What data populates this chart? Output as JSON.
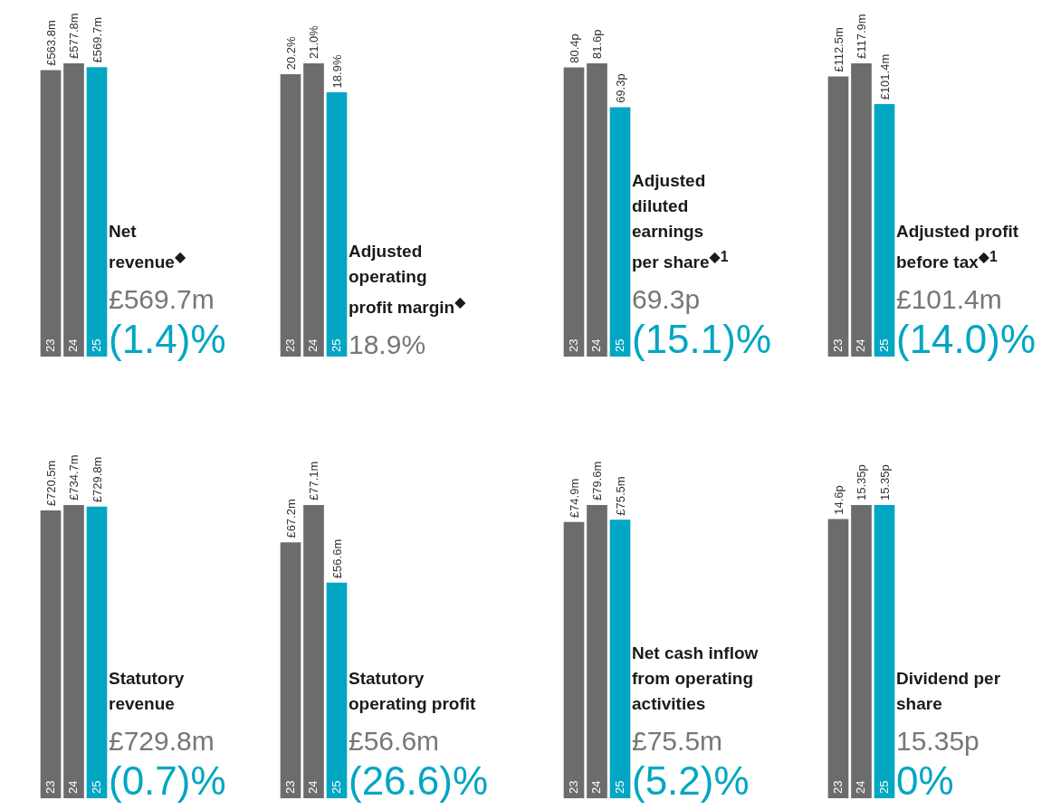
{
  "chart_data": [
    {
      "type": "bar",
      "title": "Net revenue$^{◆}$",
      "categories": [
        "23",
        "24",
        "25"
      ],
      "values": [
        563.8,
        577.8,
        569.7
      ],
      "value_labels": [
        "£563.8m",
        "£577.8m",
        "£569.7m"
      ],
      "colors": [
        "#6d6c6d",
        "#6d6c6d",
        "#00a6c2"
      ],
      "annotations": [
        "£569.7m",
        "(1.4)%"
      ]
    },
    {
      "type": "bar",
      "title": "Adjusted operating profit margin$^{◆}$",
      "categories": [
        "23",
        "24",
        "25"
      ],
      "values": [
        20.2,
        21.0,
        18.9
      ],
      "value_labels": [
        "20.2%",
        "21.0%",
        "18.9%"
      ],
      "colors": [
        "#6d6c6d",
        "#6d6c6d",
        "#00a6c2"
      ],
      "annotations": [
        "18.9%"
      ]
    },
    {
      "type": "bar",
      "title": "Adjusted diluted earnings per share$^{◆1}$",
      "categories": [
        "23",
        "24",
        "25"
      ],
      "values": [
        80.4,
        81.6,
        69.3
      ],
      "value_labels": [
        "80.4p",
        "81.6p",
        "69.3p"
      ],
      "colors": [
        "#6d6c6d",
        "#6d6c6d",
        "#00a6c2"
      ],
      "annotations": [
        "69.3p",
        "(15.1)%"
      ]
    },
    {
      "type": "bar",
      "title": "Adjusted profit before tax$^{◆1}$",
      "categories": [
        "23",
        "24",
        "25"
      ],
      "values": [
        112.5,
        117.9,
        101.4
      ],
      "value_labels": [
        "£112.5m",
        "£117.9m",
        "£101.4m"
      ],
      "colors": [
        "#6d6c6d",
        "#6d6c6d",
        "#00a6c2"
      ],
      "annotations": [
        "£101.4m",
        "(14.0)%"
      ]
    },
    {
      "type": "bar",
      "title": "Statutory revenue",
      "categories": [
        "23",
        "24",
        "25"
      ],
      "values": [
        720.5,
        734.7,
        729.8
      ],
      "value_labels": [
        "£720.5m",
        "£734.7m",
        "£729.8m"
      ],
      "colors": [
        "#6d6c6d",
        "#6d6c6d",
        "#00a6c2"
      ],
      "annotations": [
        "£729.8m",
        "(0.7)%"
      ]
    },
    {
      "type": "bar",
      "title": "Statutory operating profit",
      "categories": [
        "23",
        "24",
        "25"
      ],
      "values": [
        67.2,
        77.1,
        56.6
      ],
      "value_labels": [
        "£67.2m",
        "£77.1m",
        "£56.6m"
      ],
      "colors": [
        "#6d6c6d",
        "#6d6c6d",
        "#00a6c2"
      ],
      "annotations": [
        "£56.6m",
        "(26.6)%"
      ]
    },
    {
      "type": "bar",
      "title": "Net cash inflow from operating activities",
      "categories": [
        "23",
        "24",
        "25"
      ],
      "values": [
        74.9,
        79.6,
        75.5
      ],
      "value_labels": [
        "£74.9m",
        "£79.6m",
        "£75.5m"
      ],
      "colors": [
        "#6d6c6d",
        "#6d6c6d",
        "#00a6c2"
      ],
      "annotations": [
        "£75.5m",
        "(5.2)%"
      ]
    },
    {
      "type": "bar",
      "title": "Dividend per share",
      "categories": [
        "23",
        "24",
        "25"
      ],
      "values": [
        14.6,
        15.35,
        15.35
      ],
      "value_labels": [
        "14.6p",
        "15.35p",
        "15.35p"
      ],
      "colors": [
        "#6d6c6d",
        "#6d6c6d",
        "#00a6c2"
      ],
      "annotations": [
        "15.35p",
        "0%"
      ]
    }
  ]
}
